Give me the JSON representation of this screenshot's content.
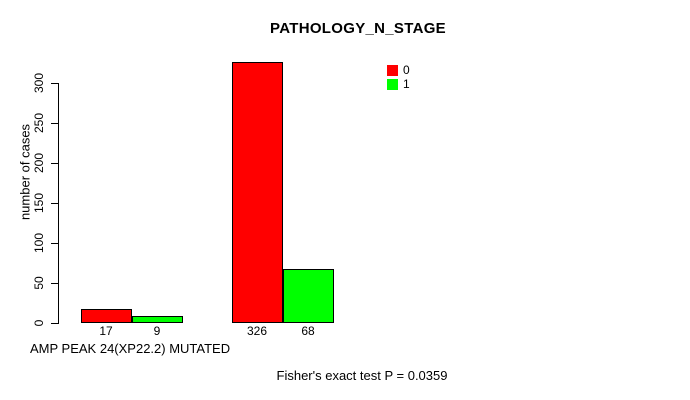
{
  "figure": {
    "background_color": "#ffffff",
    "axis_color": "#000000",
    "text_color": "#000000"
  },
  "chart_data": {
    "type": "bar",
    "title": "PATHOLOGY_N_STAGE",
    "ylabel": "number of cases",
    "xlabel": "AMP PEAK 24(XP22.2) MUTATED",
    "annotation": "Fisher's exact test P = 0.0359",
    "ylim": [
      0,
      330
    ],
    "yticks": [
      0,
      50,
      100,
      150,
      200,
      250,
      300
    ],
    "grid": false,
    "legend_position": "top-right",
    "legend": [
      {
        "label": "0",
        "color": "#ff0000"
      },
      {
        "label": "1",
        "color": "#00ff00"
      }
    ],
    "categories": [
      "group-1",
      "group-2"
    ],
    "series": [
      {
        "name": "0",
        "color": "#ff0000",
        "values": [
          17,
          326
        ]
      },
      {
        "name": "1",
        "color": "#00ff00",
        "values": [
          9,
          68
        ]
      }
    ],
    "bar_labels": [
      "17",
      "9",
      "326",
      "68"
    ]
  }
}
